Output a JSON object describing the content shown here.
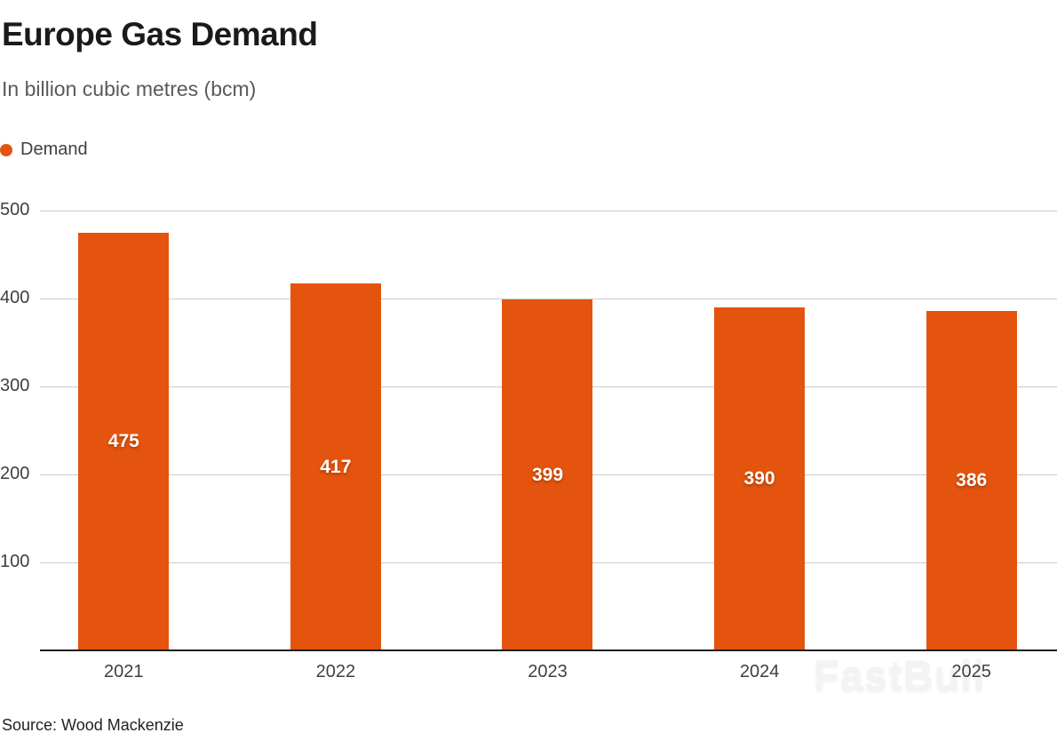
{
  "header": {
    "title": "Europe Gas Demand",
    "subtitle": "In billion cubic metres (bcm)"
  },
  "legend": {
    "label": "Demand"
  },
  "source": "Source: Wood Mackenzie",
  "watermark": "FastBull",
  "colors": {
    "accent": "#e4540e",
    "gridline": "#cbcbcb",
    "axis_line": "#1f1f1f",
    "title_text": "#1a1a1a",
    "subtitle_text": "#58595b",
    "tick_text": "#3f3f3f",
    "bar_value_text": "#ffffff",
    "watermark_text": "#f3f3f3"
  },
  "chart_data": {
    "type": "bar",
    "title": "Europe Gas Demand",
    "subtitle": "In billion cubic metres (bcm)",
    "unit": "bcm",
    "categories": [
      "2021",
      "2022",
      "2023",
      "2024",
      "2025"
    ],
    "series": [
      {
        "name": "Demand",
        "color": "#e4540e",
        "values": [
          475,
          417,
          399,
          390,
          386
        ]
      }
    ],
    "ylim": [
      0,
      500
    ],
    "y_ticks": [
      100,
      200,
      300,
      400,
      500
    ],
    "grid": "horizontal",
    "legend_position": "top-left",
    "value_labels": "inside-center",
    "source": "Wood Mackenzie"
  }
}
